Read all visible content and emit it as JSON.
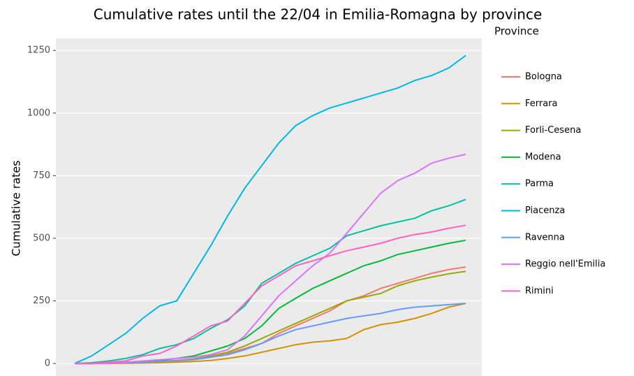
{
  "chart_data": {
    "type": "line",
    "title": "Cumulative rates until the 22/04 in Emilia-Romagna by province",
    "y_label": "Cumulative rates",
    "legend_title": "Province",
    "categories": [
      null,
      null,
      null,
      null,
      null,
      null,
      null,
      null,
      null,
      null,
      null,
      null,
      null,
      null,
      null,
      null,
      null,
      null,
      null,
      null,
      null,
      null,
      null,
      null
    ],
    "ylim": [
      -50,
      1298
    ],
    "yticks": [
      0,
      250,
      500,
      750,
      1000,
      1250
    ],
    "grid": true,
    "series": [
      {
        "name": "Bologna",
        "color": "#F8766D",
        "values": [
          0,
          0,
          2,
          4,
          6,
          8,
          10,
          15,
          25,
          40,
          60,
          80,
          120,
          150,
          180,
          210,
          250,
          270,
          300,
          320,
          340,
          360,
          375,
          385
        ]
      },
      {
        "name": "Ferrara",
        "color": "#D39200",
        "values": [
          0,
          0,
          0,
          1,
          2,
          3,
          5,
          8,
          12,
          20,
          30,
          45,
          60,
          75,
          85,
          90,
          100,
          135,
          155,
          165,
          180,
          200,
          225,
          240
        ]
      },
      {
        "name": "Forli-Cesena",
        "color": "#93AA00",
        "values": [
          0,
          0,
          2,
          3,
          5,
          8,
          12,
          18,
          30,
          45,
          70,
          100,
          130,
          160,
          190,
          220,
          250,
          265,
          280,
          310,
          330,
          345,
          358,
          368
        ]
      },
      {
        "name": "Modena",
        "color": "#00BA38",
        "values": [
          0,
          0,
          3,
          5,
          8,
          12,
          20,
          30,
          50,
          70,
          100,
          150,
          220,
          260,
          300,
          330,
          360,
          390,
          410,
          435,
          450,
          465,
          480,
          492
        ]
      },
      {
        "name": "Parma",
        "color": "#00C19F",
        "values": [
          0,
          3,
          10,
          20,
          35,
          60,
          75,
          100,
          140,
          175,
          230,
          320,
          360,
          400,
          430,
          460,
          510,
          530,
          550,
          565,
          580,
          610,
          630,
          655
        ]
      },
      {
        "name": "Piacenza",
        "color": "#00B9E3",
        "values": [
          0,
          30,
          75,
          120,
          180,
          230,
          250,
          360,
          470,
          590,
          700,
          790,
          880,
          950,
          990,
          1020,
          1040,
          1060,
          1080,
          1100,
          1130,
          1150,
          1180,
          1230
        ]
      },
      {
        "name": "Ravenna",
        "color": "#619CFF",
        "values": [
          0,
          0,
          2,
          3,
          5,
          8,
          12,
          16,
          25,
          35,
          55,
          80,
          110,
          135,
          150,
          165,
          180,
          190,
          200,
          215,
          225,
          230,
          235,
          240
        ]
      },
      {
        "name": "Reggio nell'Emilia",
        "color": "#DB72FB",
        "values": [
          0,
          0,
          0,
          5,
          10,
          15,
          20,
          25,
          35,
          55,
          110,
          190,
          270,
          330,
          390,
          440,
          520,
          600,
          680,
          730,
          760,
          800,
          820,
          835
        ]
      },
      {
        "name": "Rimini",
        "color": "#FF61C3",
        "values": [
          0,
          0,
          5,
          10,
          30,
          40,
          70,
          110,
          150,
          170,
          240,
          310,
          350,
          390,
          410,
          430,
          450,
          465,
          480,
          500,
          515,
          525,
          540,
          552
        ]
      }
    ]
  }
}
